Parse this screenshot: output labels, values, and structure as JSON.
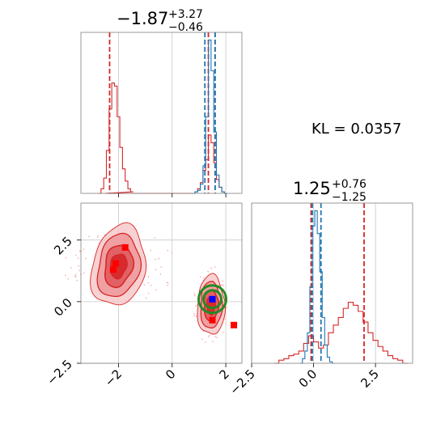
{
  "chart_data": {
    "type": "corner",
    "titles": {
      "p1": {
        "base": "−1.87",
        "sup": "+3.27",
        "sub": "−0.46"
      },
      "p2": {
        "base": "1.25",
        "sup": "+0.76",
        "sub": "−1.25"
      }
    },
    "kl_label": "KL = 0.0357",
    "colors": {
      "red": "#d62728",
      "blue": "#1f77b4",
      "green": "#228b22",
      "marker_blue": "#0000ff",
      "marker_red": "#ff0000"
    },
    "grid": true,
    "panels": [
      {
        "name": "marginal-p1",
        "type": "histogram",
        "xlim": [
          -3.4,
          2.6
        ],
        "x_ticks": [
          -2,
          0,
          2
        ],
        "series": [
          {
            "name": "red",
            "color": "#d62728",
            "bins": [
              [
                -2.7,
                0.0
              ],
              [
                -2.6,
                0.03
              ],
              [
                -2.5,
                0.1
              ],
              [
                -2.4,
                0.28
              ],
              [
                -2.3,
                0.55
              ],
              [
                -2.2,
                0.72
              ],
              [
                -2.1,
                0.7
              ],
              [
                -2.0,
                0.5
              ],
              [
                -1.9,
                0.3
              ],
              [
                -1.8,
                0.16
              ],
              [
                -1.7,
                0.08
              ],
              [
                -1.6,
                0.03
              ],
              [
                -1.5,
                0.01
              ],
              [
                -1.4,
                0.0
              ],
              [
                0.8,
                0.0
              ],
              [
                0.9,
                0.01
              ],
              [
                1.0,
                0.03
              ],
              [
                1.1,
                0.07
              ],
              [
                1.2,
                0.15
              ],
              [
                1.3,
                0.22
              ],
              [
                1.4,
                0.38
              ],
              [
                1.5,
                0.33
              ],
              [
                1.6,
                0.2
              ],
              [
                1.7,
                0.09
              ],
              [
                1.8,
                0.04
              ],
              [
                1.9,
                0.01
              ],
              [
                2.0,
                0.0
              ]
            ],
            "quantile_lines": [
              -2.33,
              1.35,
              1.6
            ]
          },
          {
            "name": "blue",
            "color": "#1f77b4",
            "bins": [
              [
                0.8,
                0.0
              ],
              [
                0.9,
                0.01
              ],
              [
                1.0,
                0.02
              ],
              [
                1.1,
                0.06
              ],
              [
                1.2,
                0.18
              ],
              [
                1.3,
                0.5
              ],
              [
                1.4,
                1.0
              ],
              [
                1.5,
                0.8
              ],
              [
                1.6,
                0.4
              ],
              [
                1.7,
                0.12
              ],
              [
                1.8,
                0.04
              ],
              [
                1.9,
                0.01
              ],
              [
                2.0,
                0.0
              ]
            ],
            "quantile_lines": [
              1.22,
              1.6
            ]
          }
        ]
      },
      {
        "name": "joint-p1-p2",
        "type": "2d-contour",
        "xlim": [
          -3.4,
          2.6
        ],
        "ylim": [
          -2.5,
          4.0
        ],
        "x_ticks": [
          -2,
          0,
          2
        ],
        "y_ticks": [
          -2.5,
          0.0,
          2.5
        ],
        "red_modes": [
          {
            "x": -2.0,
            "y": 1.45
          },
          {
            "x": 1.45,
            "y": -0.15
          }
        ],
        "green_circle_center": {
          "x": 1.5,
          "y": 0.1
        },
        "markers": [
          {
            "x": 1.5,
            "y": 0.1,
            "color": "#0000ff"
          },
          {
            "x": -2.2,
            "y": 1.3,
            "color": "#ff0000"
          },
          {
            "x": -2.1,
            "y": 1.55,
            "color": "#ff0000"
          },
          {
            "x": -1.75,
            "y": 2.2,
            "color": "#ff0000"
          },
          {
            "x": 1.5,
            "y": -0.75,
            "color": "#ff0000"
          },
          {
            "x": 2.3,
            "y": -0.95,
            "color": "#ff0000"
          }
        ]
      },
      {
        "name": "marginal-p2",
        "type": "histogram",
        "xlim": [
          -2.5,
          4.0
        ],
        "x_ticks": [
          -2.5,
          0.0,
          2.5
        ],
        "series": [
          {
            "name": "red",
            "color": "#d62728",
            "bins": [
              [
                -1.5,
                0.0
              ],
              [
                -1.3,
                0.02
              ],
              [
                -1.1,
                0.03
              ],
              [
                -0.9,
                0.05
              ],
              [
                -0.7,
                0.06
              ],
              [
                -0.5,
                0.08
              ],
              [
                -0.3,
                0.13
              ],
              [
                -0.1,
                0.18
              ],
              [
                0.1,
                0.14
              ],
              [
                0.3,
                0.1
              ],
              [
                0.5,
                0.12
              ],
              [
                0.7,
                0.2
              ],
              [
                0.9,
                0.25
              ],
              [
                1.1,
                0.3
              ],
              [
                1.3,
                0.36
              ],
              [
                1.5,
                0.4
              ],
              [
                1.7,
                0.38
              ],
              [
                1.9,
                0.34
              ],
              [
                2.1,
                0.27
              ],
              [
                2.3,
                0.2
              ],
              [
                2.5,
                0.15
              ],
              [
                2.7,
                0.11
              ],
              [
                2.9,
                0.08
              ],
              [
                3.1,
                0.05
              ],
              [
                3.3,
                0.03
              ],
              [
                3.5,
                0.02
              ],
              [
                3.7,
                0.0
              ]
            ],
            "quantile_lines": [
              -0.1,
              2.04
            ]
          },
          {
            "name": "blue",
            "color": "#1f77b4",
            "bins": [
              [
                -0.5,
                0.0
              ],
              [
                -0.4,
                0.03
              ],
              [
                -0.3,
                0.08
              ],
              [
                -0.2,
                0.2
              ],
              [
                -0.1,
                0.5
              ],
              [
                0.0,
                0.9
              ],
              [
                0.1,
                1.0
              ],
              [
                0.2,
                0.85
              ],
              [
                0.3,
                0.6
              ],
              [
                0.4,
                0.3
              ],
              [
                0.5,
                0.12
              ],
              [
                0.6,
                0.04
              ],
              [
                0.7,
                0.01
              ],
              [
                0.8,
                0.0
              ]
            ],
            "quantile_lines": [
              -0.05,
              0.3
            ]
          }
        ]
      }
    ]
  }
}
